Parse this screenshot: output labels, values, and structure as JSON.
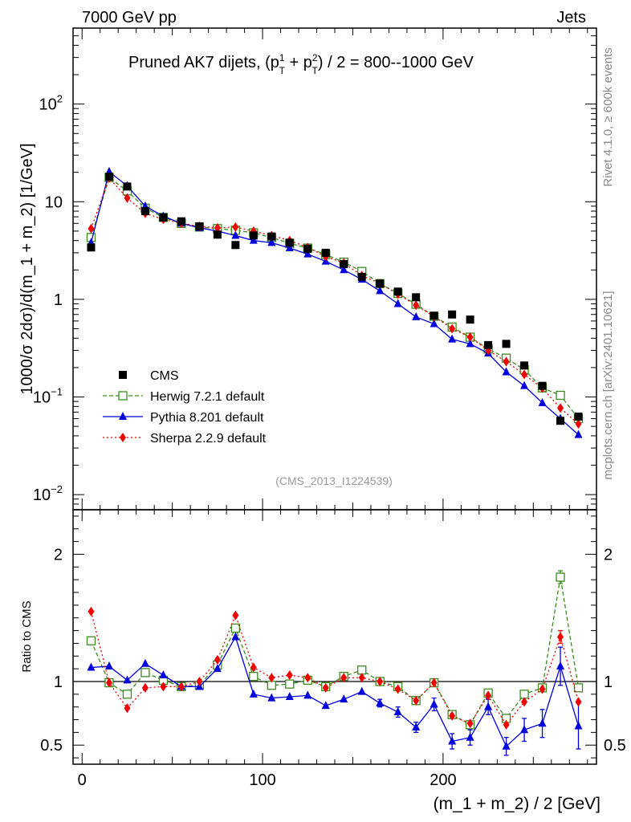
{
  "header": {
    "left_label": "7000 GeV pp",
    "right_label": "Jets",
    "side_label_top": "Rivet 4.1.0, ≥ 600k events",
    "side_label_bottom": "mcplots.cern.ch [arXiv:2401.10621]"
  },
  "chart_data": {
    "type": "line",
    "title_prefix": "Pruned AK7 dijets, (p",
    "title_suffix": ") / 2 = 800--1000 GeV",
    "analysis_label": "(CMS_2013_I1224539)",
    "ylabel_main": "1000/σ   2dσ)/d(m_1 + m_2) [1/GeV]",
    "ylabel_ratio": "Ratio to CMS",
    "xlabel": "(m_1 + m_2) / 2 [GeV]",
    "xlim": [
      -5,
      285
    ],
    "ylim_main": [
      0.007,
      600
    ],
    "ylim_ratio": [
      0.35,
      2.35
    ],
    "x_ticks": [
      0,
      100,
      200
    ],
    "y_ticks_main": [
      {
        "base": "10",
        "exp": "−2"
      },
      {
        "base": "10",
        "exp": "−1"
      },
      {
        "base": "1",
        "exp": ""
      },
      {
        "base": "10",
        "exp": ""
      },
      {
        "base": "10",
        "exp": "2"
      }
    ],
    "y_ticks_ratio": [
      "0.5",
      "1",
      "2"
    ],
    "x": [
      5,
      15,
      25,
      35,
      45,
      55,
      65,
      75,
      85,
      95,
      105,
      115,
      125,
      135,
      145,
      155,
      165,
      175,
      185,
      195,
      205,
      215,
      225,
      235,
      245,
      255,
      265,
      275
    ],
    "data": {
      "name": "CMS",
      "color": "#000000",
      "values": [
        3.4,
        18.0,
        14.3,
        8.0,
        6.9,
        6.3,
        5.6,
        4.6,
        3.6,
        4.5,
        4.4,
        3.8,
        3.3,
        3.0,
        2.3,
        1.7,
        1.45,
        1.2,
        1.05,
        0.68,
        0.7,
        0.62,
        0.34,
        0.35,
        0.21,
        0.13,
        0.057,
        0.063
      ]
    },
    "series": [
      {
        "name": "Herwig 7.2.1 default",
        "color": "#3a8c1c",
        "marker": "open-square",
        "dash": "5,3",
        "values": [
          4.3,
          17.7,
          12.9,
          8.6,
          6.9,
          6.0,
          5.5,
          5.3,
          5.1,
          4.8,
          4.3,
          3.75,
          3.35,
          2.88,
          2.4,
          1.93,
          1.45,
          1.15,
          0.89,
          0.67,
          0.52,
          0.41,
          0.31,
          0.25,
          0.19,
          0.124,
          0.104,
          0.06
        ],
        "ratio": [
          1.32,
          0.99,
          0.9,
          1.07,
          1.01,
          0.96,
          0.97,
          1.13,
          1.42,
          1.04,
          0.97,
          0.98,
          1.01,
          0.96,
          1.04,
          1.09,
          1.0,
          0.96,
          0.85,
          0.99,
          0.74,
          0.66,
          0.91,
          0.71,
          0.9,
          0.95,
          1.82,
          0.95
        ],
        "ratio_err": [
          0,
          0,
          0,
          0,
          0,
          0,
          0,
          0,
          0,
          0,
          0,
          0,
          0,
          0,
          0,
          0,
          0,
          0,
          0,
          0,
          0,
          0,
          0,
          0,
          0,
          0,
          0.05,
          0
        ]
      },
      {
        "name": "Pythia 8.201 default",
        "color": "#0000dd",
        "marker": "filled-triangle",
        "dash": "",
        "values": [
          3.8,
          20.3,
          14.5,
          9.0,
          7.1,
          6.0,
          5.4,
          5.0,
          4.5,
          4.0,
          3.8,
          3.35,
          2.9,
          2.45,
          2.0,
          1.6,
          1.22,
          0.9,
          0.66,
          0.56,
          0.39,
          0.35,
          0.28,
          0.18,
          0.13,
          0.087,
          0.06,
          0.041
        ],
        "ratio": [
          1.11,
          1.12,
          1.01,
          1.14,
          1.05,
          0.96,
          0.96,
          1.1,
          1.35,
          0.9,
          0.87,
          0.88,
          0.89,
          0.81,
          0.86,
          0.92,
          0.83,
          0.76,
          0.64,
          0.82,
          0.53,
          0.56,
          0.8,
          0.49,
          0.62,
          0.67,
          1.12,
          0.65
        ],
        "ratio_err": [
          0,
          0,
          0,
          0,
          0,
          0,
          0,
          0,
          0,
          0,
          0,
          0,
          0,
          0,
          0,
          0,
          0.03,
          0.04,
          0.04,
          0.05,
          0.06,
          0.06,
          0.06,
          0.07,
          0.09,
          0.11,
          0.15,
          0.18
        ]
      },
      {
        "name": "Sherpa 2.2.9 default",
        "color": "#ee0000",
        "marker": "filled-diamond",
        "dash": "2,3",
        "values": [
          5.3,
          17.5,
          10.9,
          7.6,
          6.6,
          6.0,
          5.6,
          5.4,
          5.5,
          5.0,
          4.5,
          4.0,
          3.4,
          2.75,
          2.35,
          1.75,
          1.45,
          1.13,
          0.87,
          0.67,
          0.5,
          0.41,
          0.3,
          0.23,
          0.17,
          0.123,
          0.077,
          0.053
        ],
        "ratio": [
          1.55,
          0.99,
          0.79,
          0.95,
          0.96,
          0.96,
          1.0,
          1.17,
          1.52,
          1.11,
          1.03,
          1.05,
          1.03,
          0.95,
          1.03,
          1.03,
          1.0,
          0.94,
          0.85,
          0.99,
          0.73,
          0.67,
          0.89,
          0.66,
          0.84,
          0.94,
          1.35,
          0.84
        ],
        "ratio_err": [
          0,
          0,
          0,
          0,
          0,
          0,
          0,
          0,
          0,
          0,
          0,
          0,
          0,
          0,
          0,
          0,
          0,
          0,
          0,
          0,
          0,
          0,
          0,
          0,
          0,
          0,
          0.05,
          0
        ]
      }
    ]
  }
}
